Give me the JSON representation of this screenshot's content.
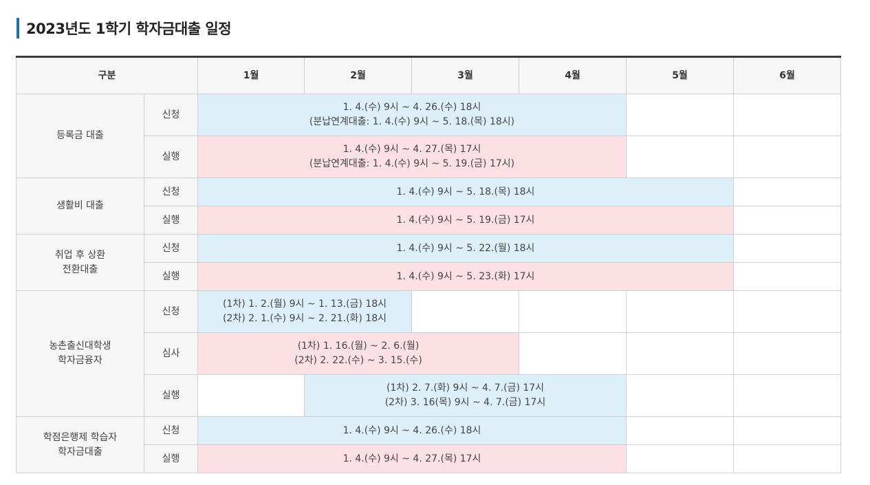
{
  "title": "2023년도 1학기 학자금대출 일정",
  "header": {
    "category": "구분",
    "months": [
      "1월",
      "2월",
      "3월",
      "4월",
      "5월",
      "6월"
    ]
  },
  "sections": {
    "tuition": {
      "name": "등록금 대출",
      "apply_label": "신청",
      "apply_line1": "1. 4.(수) 9시 ~ 4. 26.(수) 18시",
      "apply_line2": "(분납연계대출: 1. 4.(수) 9시 ~ 5. 18.(목) 18시)",
      "exec_label": "실행",
      "exec_line1": "1. 4.(수) 9시 ~ 4. 27.(목) 17시",
      "exec_line2": "(분납연계대출: 1. 4.(수) 9시 ~ 5. 19.(금) 17시)"
    },
    "living": {
      "name": "생활비 대출",
      "apply_label": "신청",
      "apply_text": "1. 4.(수) 9시 ~ 5. 18.(목) 18시",
      "exec_label": "실행",
      "exec_text": "1. 4.(수) 9시 ~ 5. 19.(금) 17시"
    },
    "employment": {
      "name_line1": "취업 후 상환",
      "name_line2": "전환대출",
      "apply_label": "신청",
      "apply_text": "1. 4.(수) 9시 ~ 5. 22.(월) 18시",
      "exec_label": "실행",
      "exec_text": "1. 4.(수) 9시 ~ 5. 23.(화) 17시"
    },
    "rural": {
      "name_line1": "농촌출신대학생",
      "name_line2": "학자금융자",
      "apply_label": "신청",
      "apply_line1": "(1차) 1. 2.(월) 9시 ~ 1. 13.(금) 18시",
      "apply_line2": "(2차) 2. 1.(수) 9시 ~ 2. 21.(화) 18시",
      "review_label": "심사",
      "review_line1": "(1차) 1. 16.(월) ~ 2. 6.(월)",
      "review_line2": "(2차) 2. 22.(수) ~ 3. 15.(수)",
      "exec_label": "실행",
      "exec_line1": "(1차) 2. 7.(화) 9시 ~ 4. 7.(금) 17시",
      "exec_line2": "(2차) 3. 16(목) 9시 ~ 4. 7.(금) 17시"
    },
    "credit_bank": {
      "name_line1": "학점은행제 학습자",
      "name_line2": "학자금대출",
      "apply_label": "신청",
      "apply_text": "1. 4.(수) 9시 ~ 4. 26.(수) 18시",
      "exec_label": "실행",
      "exec_text": "1. 4.(수) 9시 ~ 4. 27.(목) 17시"
    }
  },
  "colors": {
    "apply_bg": "#ddf0f9",
    "exec_bg": "#fde0e4",
    "title_accent": "#1f6db3"
  }
}
